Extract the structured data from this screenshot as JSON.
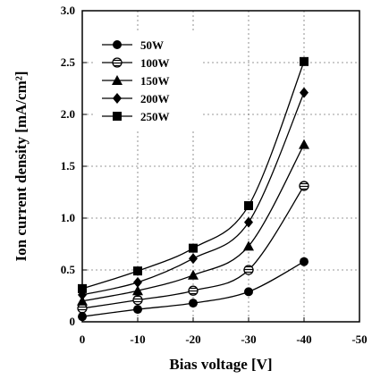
{
  "chart_data": {
    "type": "line",
    "xlabel": "Bias voltage [V]",
    "ylabel": "Ion current density [mA/cm²]",
    "xlim": [
      0,
      -50
    ],
    "ylim": [
      0,
      3.0
    ],
    "x_ticks": [
      0,
      -10,
      -20,
      -30,
      -40,
      -50
    ],
    "y_ticks": [
      0,
      0.5,
      1.0,
      1.5,
      2.0,
      2.5,
      3.0
    ],
    "x_tick_labels": [
      "0",
      "-10",
      "-20",
      "-30",
      "-40",
      "-50"
    ],
    "y_tick_labels": [
      "0",
      "0.5",
      "1.0",
      "1.5",
      "2.0",
      "2.5",
      "3.0"
    ],
    "grid": true,
    "legend_position": "top-left",
    "x": [
      0,
      -10,
      -20,
      -30,
      -40
    ],
    "series": [
      {
        "name": "50W",
        "marker": "circle",
        "values": [
          0.05,
          0.12,
          0.18,
          0.29,
          0.58
        ]
      },
      {
        "name": "100W",
        "marker": "circle-hatched",
        "values": [
          0.13,
          0.21,
          0.3,
          0.5,
          1.31
        ]
      },
      {
        "name": "150W",
        "marker": "triangle",
        "values": [
          0.2,
          0.3,
          0.45,
          0.73,
          1.71
        ]
      },
      {
        "name": "200W",
        "marker": "diamond",
        "values": [
          0.26,
          0.38,
          0.61,
          0.96,
          2.21
        ]
      },
      {
        "name": "250W",
        "marker": "square",
        "values": [
          0.32,
          0.49,
          0.71,
          1.12,
          2.51
        ]
      }
    ]
  }
}
